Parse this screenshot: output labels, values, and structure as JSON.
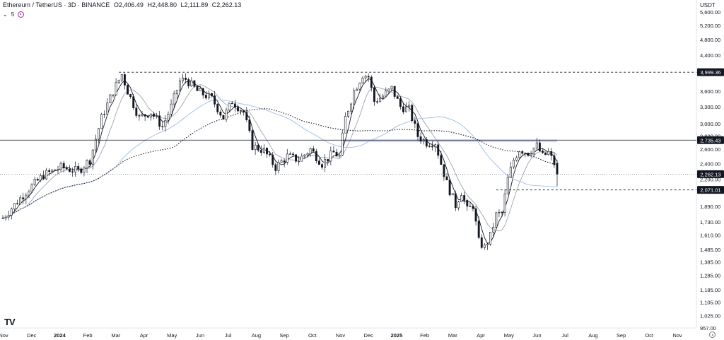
{
  "header": {
    "symbol": "Ethereum / TetherUS · 3D · BINANCE",
    "open": "O2,406.49",
    "high": "H2,448.80",
    "low": "L2,111.89",
    "close": "C2,262.13",
    "indicator_count": "5"
  },
  "currency": "USDT",
  "logo": "TV",
  "colors": {
    "up": "#ffffff",
    "down": "#131722",
    "accent_band": "#2962ff",
    "ma_fast": "#131722",
    "ma_mid": "#9598a1",
    "ma_long": "#90b4e8",
    "ma_dotted": "#131722",
    "level_label_bg": "#131722"
  },
  "chart_data": {
    "type": "candlestick",
    "scale": "log",
    "ylim": [
      957,
      6000
    ],
    "y_ticks": [
      "5,600.00",
      "5,200.00",
      "4,800.00",
      "4,400.00",
      "4,000.00",
      "3,600.00",
      "3,300.00",
      "3,000.00",
      "2,800.00",
      "2,600.00",
      "2,400.00",
      "2,200.00",
      "2,071.01",
      "1,890.00",
      "1,730.00",
      "1,610.00",
      "1,485.00",
      "1,385.00",
      "1,285.00",
      "1,185.00",
      "1,105.00",
      "1,025.00",
      "957.00"
    ],
    "x_labels": [
      "Nov",
      "Dec",
      "2024",
      "Feb",
      "Mar",
      "Apr",
      "May",
      "Jun",
      "Jul",
      "Aug",
      "Sep",
      "Oct",
      "Nov",
      "Dec",
      "2025",
      "Feb",
      "Mar",
      "Apr",
      "May",
      "Jun",
      "Jul",
      "Aug",
      "Sep",
      "Oct",
      "Nov"
    ],
    "bold_x_labels": [
      "2024",
      "2025"
    ],
    "levels": [
      {
        "value": 3999.36,
        "label": "3,999.36",
        "style": "dashed"
      },
      {
        "value": 2735.43,
        "label": "2,735.43",
        "style": "solid"
      },
      {
        "value": 2262.13,
        "label": "2,262.13",
        "style": "dotted"
      },
      {
        "value": 2071.01,
        "label": "2,071.01",
        "style": "dashed"
      }
    ],
    "band": [
      2705,
      2745
    ],
    "price_path": [
      {
        "t": 0,
        "p": 1770
      },
      {
        "t": 8,
        "p": 2050
      },
      {
        "t": 14,
        "p": 2250
      },
      {
        "t": 20,
        "p": 2350
      },
      {
        "t": 26,
        "p": 2300
      },
      {
        "t": 30,
        "p": 2450
      },
      {
        "t": 34,
        "p": 3100
      },
      {
        "t": 38,
        "p": 3600
      },
      {
        "t": 41,
        "p": 3950
      },
      {
        "t": 43,
        "p": 3600
      },
      {
        "t": 47,
        "p": 3100
      },
      {
        "t": 51,
        "p": 3200
      },
      {
        "t": 55,
        "p": 2950
      },
      {
        "t": 58,
        "p": 3300
      },
      {
        "t": 61,
        "p": 3800
      },
      {
        "t": 63,
        "p": 3850
      },
      {
        "t": 67,
        "p": 3600
      },
      {
        "t": 72,
        "p": 3450
      },
      {
        "t": 76,
        "p": 3100
      },
      {
        "t": 79,
        "p": 3400
      },
      {
        "t": 83,
        "p": 3200
      },
      {
        "t": 86,
        "p": 2650
      },
      {
        "t": 90,
        "p": 2580
      },
      {
        "t": 94,
        "p": 2350
      },
      {
        "t": 98,
        "p": 2500
      },
      {
        "t": 102,
        "p": 2450
      },
      {
        "t": 106,
        "p": 2600
      },
      {
        "t": 110,
        "p": 2400
      },
      {
        "t": 114,
        "p": 2550
      },
      {
        "t": 116,
        "p": 2500
      },
      {
        "t": 118,
        "p": 3100
      },
      {
        "t": 121,
        "p": 3600
      },
      {
        "t": 124,
        "p": 3950
      },
      {
        "t": 126,
        "p": 3900
      },
      {
        "t": 128,
        "p": 3400
      },
      {
        "t": 131,
        "p": 3500
      },
      {
        "t": 134,
        "p": 3650
      },
      {
        "t": 137,
        "p": 3300
      },
      {
        "t": 140,
        "p": 3250
      },
      {
        "t": 143,
        "p": 2800
      },
      {
        "t": 146,
        "p": 2700
      },
      {
        "t": 149,
        "p": 2700
      },
      {
        "t": 151,
        "p": 2400
      },
      {
        "t": 153,
        "p": 2150
      },
      {
        "t": 156,
        "p": 1900
      },
      {
        "t": 158,
        "p": 2050
      },
      {
        "t": 160,
        "p": 1850
      },
      {
        "t": 162,
        "p": 1900
      },
      {
        "t": 164,
        "p": 1550
      },
      {
        "t": 166,
        "p": 1500
      },
      {
        "t": 168,
        "p": 1600
      },
      {
        "t": 170,
        "p": 1800
      },
      {
        "t": 172,
        "p": 1820
      },
      {
        "t": 174,
        "p": 2200
      },
      {
        "t": 176,
        "p": 2450
      },
      {
        "t": 178,
        "p": 2600
      },
      {
        "t": 181,
        "p": 2550
      },
      {
        "t": 184,
        "p": 2650
      },
      {
        "t": 186,
        "p": 2500
      },
      {
        "t": 188,
        "p": 2550
      },
      {
        "t": 190,
        "p": 2400
      }
    ],
    "last_candle": {
      "open": 2406.49,
      "high": 2448.8,
      "low": 2111.89,
      "close": 2262.13
    },
    "series": [
      {
        "style": "solid-dark"
      },
      {
        "style": "solid-grey"
      },
      {
        "style": "solid-blue"
      },
      {
        "style": "dotted-dark"
      }
    ],
    "grid": false
  }
}
